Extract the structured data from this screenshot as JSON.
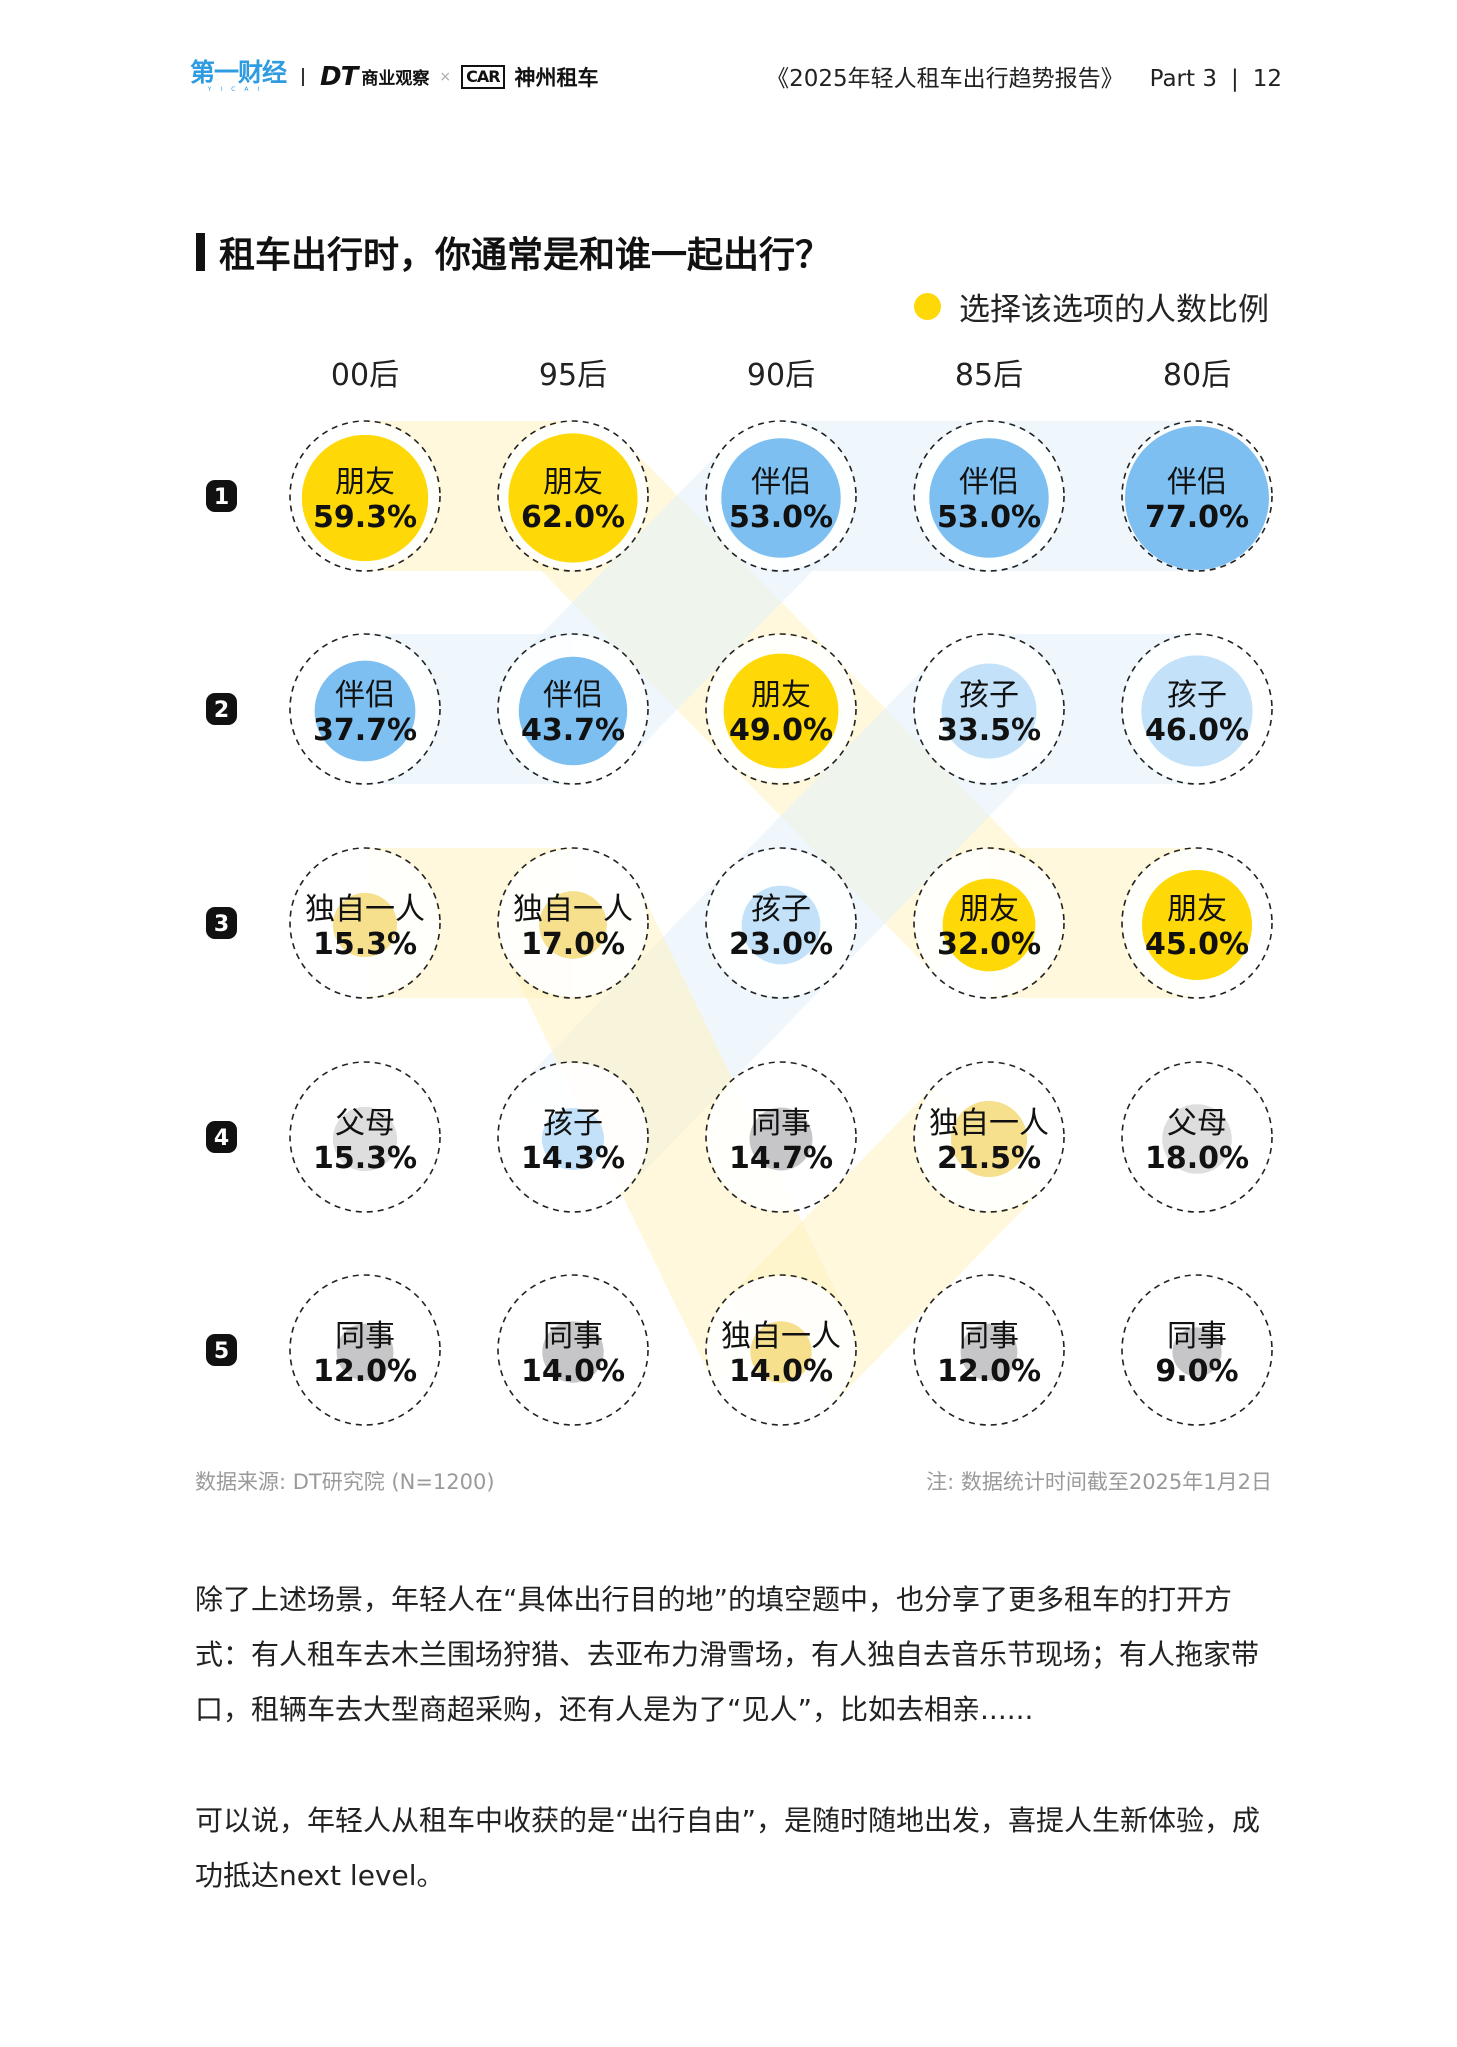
{
  "header": {
    "logo_yicai": "第一财经",
    "logo_yicai_sub": "YICAI",
    "logo_dt": "DT",
    "logo_dt_cn": "商业观察",
    "logo_times": "×",
    "logo_car": "CAR",
    "logo_car_cn": "神州租车",
    "report_title": "《2025年轻人租车出行趋势报告》",
    "part": "Part 3",
    "separator": "|",
    "page_number": "12"
  },
  "colors": {
    "朋友": "#FFD808",
    "伴侣": "#7DBFF0",
    "孩子": "#C3E2F9",
    "独自一人": "#F6E08E",
    "父母": "#DEDEDF",
    "同事": "#C6C6C8",
    "ribbon_yellow": "#FFF3C0",
    "ribbon_blue": "#E3F1FC",
    "rank_badge": "#111111"
  },
  "chart_data": {
    "type": "bubble-matrix",
    "title": "租车出行时，你通常是和谁一起出行？",
    "legend": "选择该选项的人数比例",
    "categories": [
      "00后",
      "95后",
      "90后",
      "85后",
      "80后"
    ],
    "ranks": [
      "1",
      "2",
      "3",
      "4",
      "5"
    ],
    "unit": "%",
    "series": [
      {
        "category": "00后",
        "items": [
          {
            "rank": 1,
            "name": "朋友",
            "value": 59.3,
            "label": "59.3%"
          },
          {
            "rank": 2,
            "name": "伴侣",
            "value": 37.7,
            "label": "37.7%"
          },
          {
            "rank": 3,
            "name": "独自一人",
            "value": 15.3,
            "label": "15.3%"
          },
          {
            "rank": 4,
            "name": "父母",
            "value": 15.3,
            "label": "15.3%"
          },
          {
            "rank": 5,
            "name": "同事",
            "value": 12.0,
            "label": "12.0%"
          }
        ]
      },
      {
        "category": "95后",
        "items": [
          {
            "rank": 1,
            "name": "朋友",
            "value": 62.0,
            "label": "62.0%"
          },
          {
            "rank": 2,
            "name": "伴侣",
            "value": 43.7,
            "label": "43.7%"
          },
          {
            "rank": 3,
            "name": "独自一人",
            "value": 17.0,
            "label": "17.0%"
          },
          {
            "rank": 4,
            "name": "孩子",
            "value": 14.3,
            "label": "14.3%"
          },
          {
            "rank": 5,
            "name": "同事",
            "value": 14.0,
            "label": "14.0%"
          }
        ]
      },
      {
        "category": "90后",
        "items": [
          {
            "rank": 1,
            "name": "伴侣",
            "value": 53.0,
            "label": "53.0%"
          },
          {
            "rank": 2,
            "name": "朋友",
            "value": 49.0,
            "label": "49.0%"
          },
          {
            "rank": 3,
            "name": "孩子",
            "value": 23.0,
            "label": "23.0%"
          },
          {
            "rank": 4,
            "name": "同事",
            "value": 14.7,
            "label": "14.7%"
          },
          {
            "rank": 5,
            "name": "独自一人",
            "value": 14.0,
            "label": "14.0%"
          }
        ]
      },
      {
        "category": "85后",
        "items": [
          {
            "rank": 1,
            "name": "伴侣",
            "value": 53.0,
            "label": "53.0%"
          },
          {
            "rank": 2,
            "name": "孩子",
            "value": 33.5,
            "label": "33.5%"
          },
          {
            "rank": 3,
            "name": "朋友",
            "value": 32.0,
            "label": "32.0%"
          },
          {
            "rank": 4,
            "name": "独自一人",
            "value": 21.5,
            "label": "21.5%"
          },
          {
            "rank": 5,
            "name": "同事",
            "value": 12.0,
            "label": "12.0%"
          }
        ]
      },
      {
        "category": "80后",
        "items": [
          {
            "rank": 1,
            "name": "伴侣",
            "value": 77.0,
            "label": "77.0%"
          },
          {
            "rank": 2,
            "name": "孩子",
            "value": 46.0,
            "label": "46.0%"
          },
          {
            "rank": 3,
            "name": "朋友",
            "value": 45.0,
            "label": "45.0%"
          },
          {
            "rank": 4,
            "name": "父母",
            "value": 18.0,
            "label": "18.0%"
          },
          {
            "rank": 5,
            "name": "同事",
            "value": 9.0,
            "label": "9.0%"
          }
        ]
      }
    ]
  },
  "footnotes": {
    "source": "数据来源: DT研究院 (N=1200)",
    "note": "注: 数据统计时间截至2025年1月2日"
  },
  "body": {
    "paragraph1": "除了上述场景，年轻人在“具体出行目的地”的填空题中，也分享了更多租车的打开方式：有人租车去木兰围场狩猎、去亚布力滑雪场，有人独自去音乐节现场；有人拖家带口，租辆车去大型商超采购，还有人是为了“见人”，比如去相亲......",
    "paragraph2": "可以说，年轻人从租车中收获的是“出行自由”，是随时随地出发，喜提人生新体验，成功抵达next level。"
  }
}
